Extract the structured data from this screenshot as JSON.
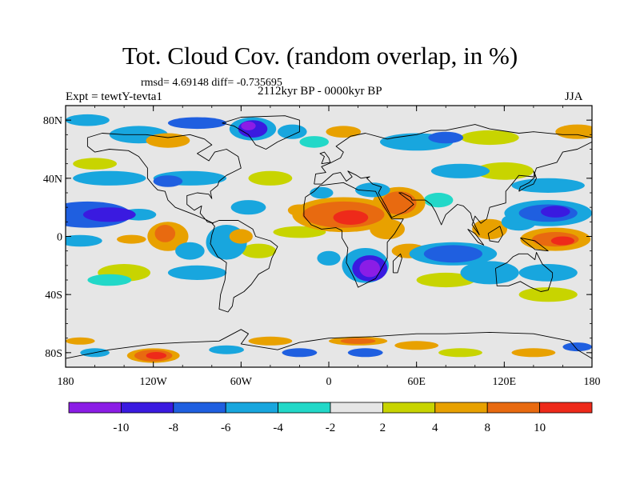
{
  "header": {
    "title": "Tot. Cloud Cov. (random overlap, in %)",
    "stats": "rmsd= 4.69148 diff= -0.735695",
    "experiment": "Expt = tewtY-tevta1",
    "period": "2112kyr BP - 0000kyr BP",
    "season": "JJA"
  },
  "axes": {
    "y_ticks": [
      {
        "lat": 80,
        "label": "80N"
      },
      {
        "lat": 40,
        "label": "40N"
      },
      {
        "lat": 0,
        "label": "0"
      },
      {
        "lat": -40,
        "label": "40S"
      },
      {
        "lat": -80,
        "label": "80S"
      }
    ],
    "x_ticks": [
      {
        "lon": -180,
        "label": "180"
      },
      {
        "lon": -120,
        "label": "120W"
      },
      {
        "lon": -60,
        "label": "60W"
      },
      {
        "lon": 0,
        "label": "0"
      },
      {
        "lon": 60,
        "label": "60E"
      },
      {
        "lon": 120,
        "label": "120E"
      },
      {
        "lon": 180,
        "label": "180"
      }
    ],
    "lon_range": [
      -180,
      180
    ],
    "lat_range": [
      -90,
      90
    ]
  },
  "colorbar": {
    "colors": [
      "#8b1de6",
      "#3a1ae0",
      "#1f5fe0",
      "#18a6de",
      "#22d8c8",
      "#e6e6e6",
      "#c8d400",
      "#e8a100",
      "#e86a10",
      "#ee2a1a"
    ],
    "labels": [
      "-10",
      "-8",
      "-6",
      "-4",
      "-2",
      "2",
      "4",
      "8",
      "10"
    ]
  },
  "colors": {
    "land_outline": "#000000",
    "background_field": "#e6e6e6"
  },
  "regions": [
    {
      "name": "sahara-positive",
      "lon": 10,
      "lat": 15,
      "rx": 30,
      "ry": 10,
      "level": 8
    },
    {
      "name": "arabia-positive",
      "lon": 48,
      "lat": 23,
      "rx": 16,
      "ry": 10,
      "level": 8
    },
    {
      "name": "south-africa-negative",
      "lon": 28,
      "lat": -22,
      "rx": 12,
      "ry": 9,
      "level": -10
    },
    {
      "name": "indian-ocean-negative",
      "lon": 85,
      "lat": -12,
      "rx": 25,
      "ry": 7,
      "level": -6
    },
    {
      "name": "west-pacific-positive",
      "lon": 155,
      "lat": -2,
      "rx": 20,
      "ry": 6,
      "level": 10
    },
    {
      "name": "north-pacific-negative",
      "lon": 150,
      "lat": 16,
      "rx": 25,
      "ry": 7,
      "level": -8
    },
    {
      "name": "east-pacific-negative",
      "lon": -155,
      "lat": 16,
      "rx": 20,
      "ry": 6,
      "level": -8
    },
    {
      "name": "america-positive",
      "lon": -115,
      "lat": 0,
      "rx": 10,
      "ry": 8,
      "level": 8
    },
    {
      "name": "greenland-negative",
      "lon": -52,
      "lat": 74,
      "rx": 14,
      "ry": 6,
      "level": -10
    },
    {
      "name": "antarctic-positive",
      "lon": -120,
      "lat": -82,
      "rx": 14,
      "ry": 4,
      "level": 10
    }
  ]
}
